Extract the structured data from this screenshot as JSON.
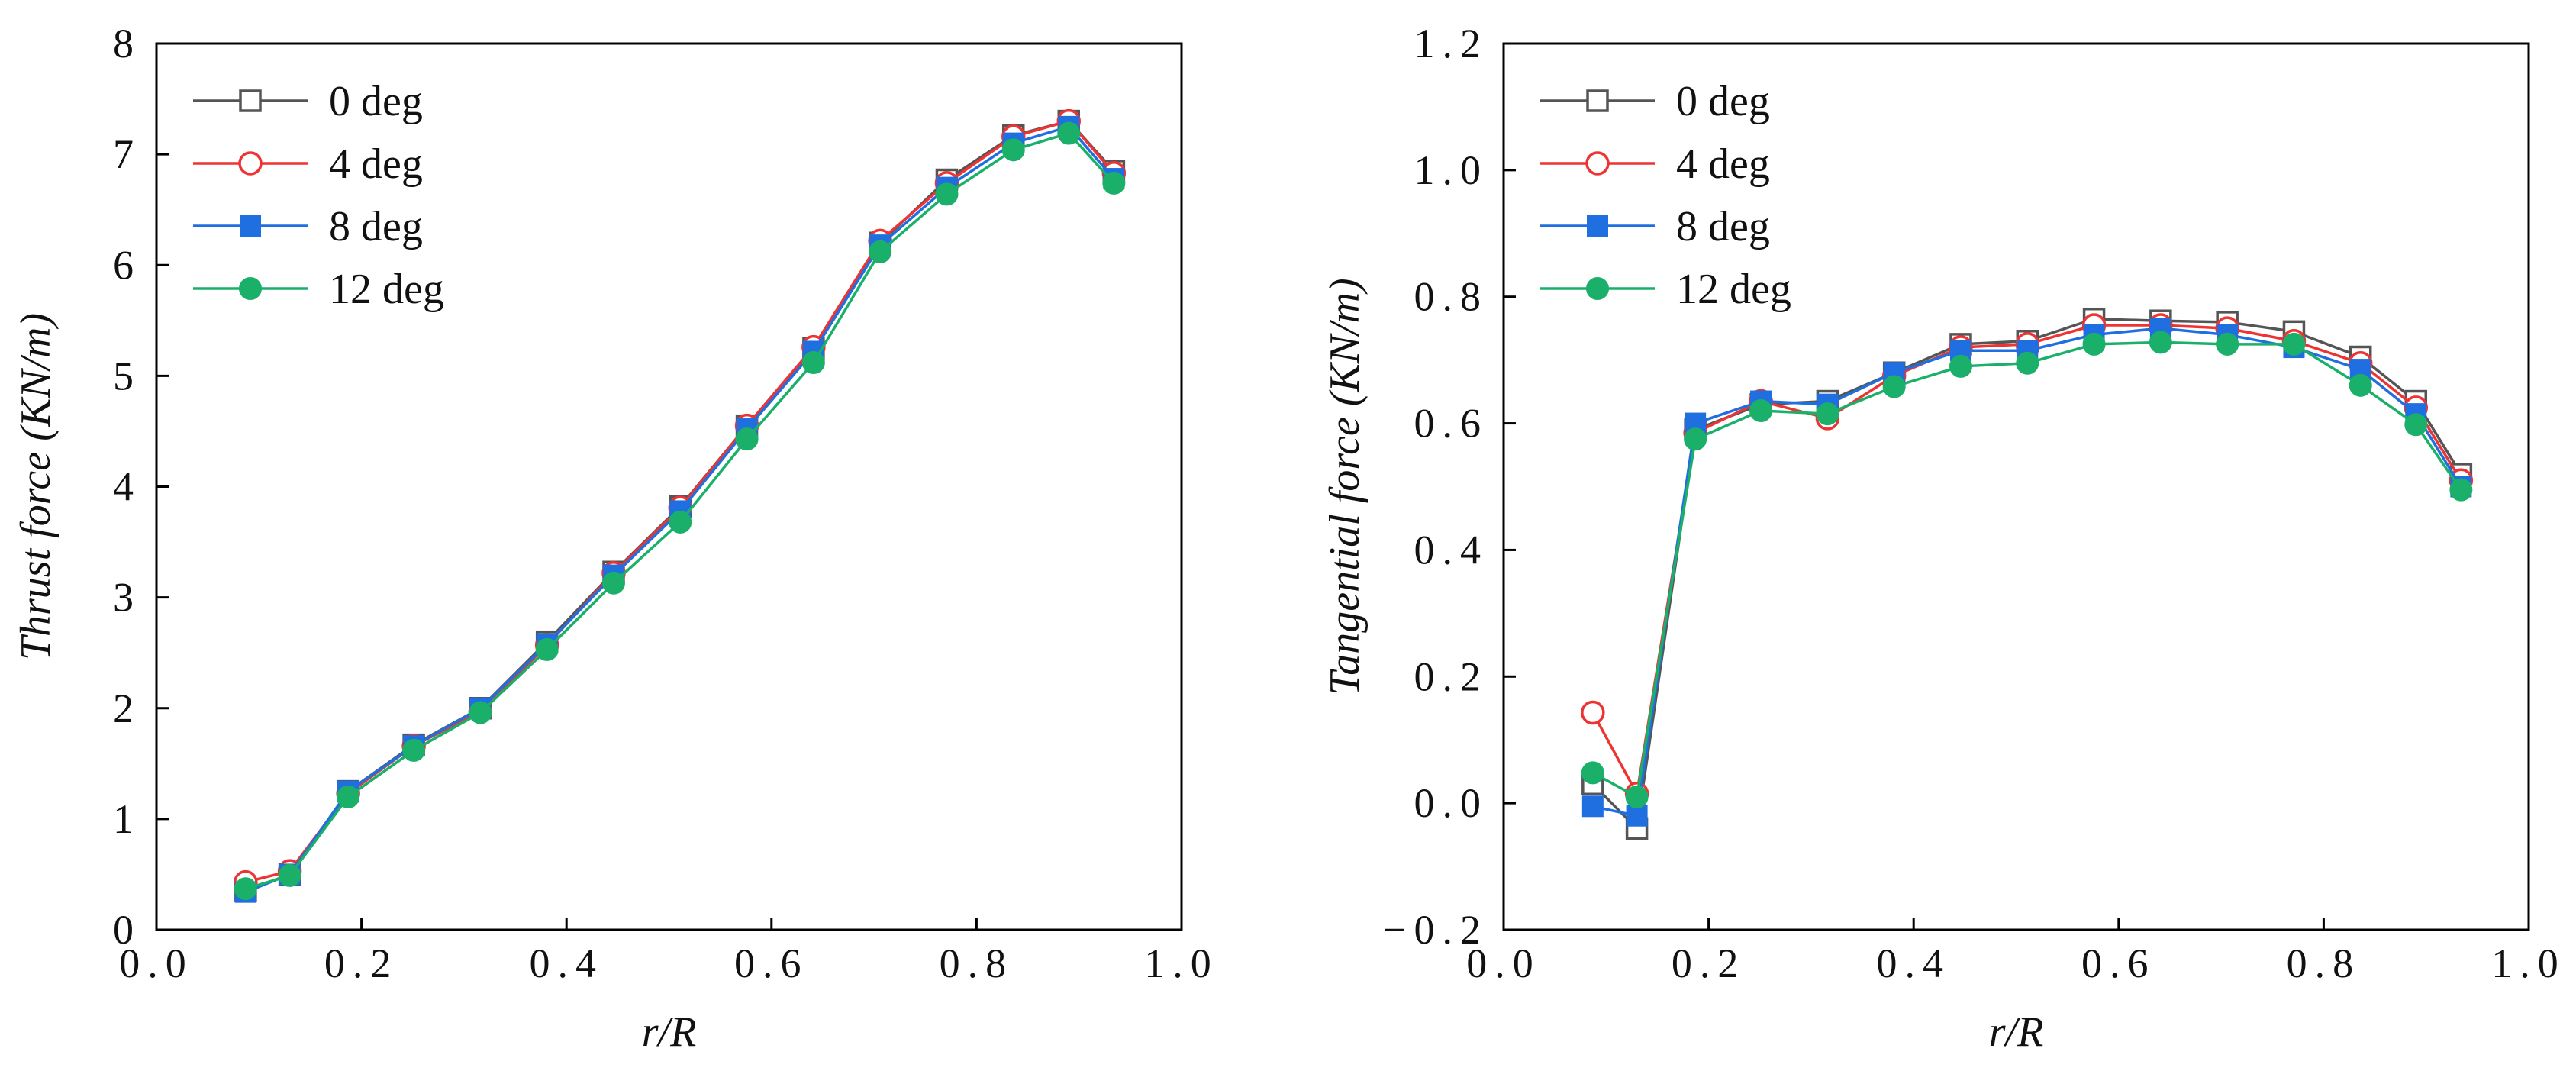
{
  "chart_data": [
    {
      "type": "line",
      "xlabel": "r/R",
      "ylabel": "Thrust force (KN/m)",
      "xlim": [
        0.0,
        1.0
      ],
      "ylim": [
        0,
        8
      ],
      "xticks": [
        0.0,
        0.2,
        0.4,
        0.6,
        0.8,
        1.0
      ],
      "xtick_labels": [
        "0.0",
        "0.2",
        "0.4",
        "0.6",
        "0.8",
        "1.0"
      ],
      "yticks": [
        0,
        1,
        2,
        3,
        4,
        5,
        6,
        7,
        8
      ],
      "ytick_labels": [
        "0",
        "1",
        "2",
        "3",
        "4",
        "5",
        "6",
        "7",
        "8"
      ],
      "legend_position": "top-left",
      "grid": false,
      "x": [
        0.087,
        0.13,
        0.187,
        0.251,
        0.316,
        0.381,
        0.446,
        0.511,
        0.576,
        0.641,
        0.706,
        0.771,
        0.836,
        0.89,
        0.934
      ],
      "series": [
        {
          "name": "0 deg",
          "color": "#555555",
          "marker": "square-open",
          "values": [
            0.35,
            0.5,
            1.25,
            1.67,
            2.0,
            2.6,
            3.23,
            3.82,
            4.55,
            5.25,
            6.2,
            6.77,
            7.17,
            7.3,
            6.85
          ]
        },
        {
          "name": "4 deg",
          "color": "#ee3333",
          "marker": "circle-open",
          "values": [
            0.43,
            0.53,
            1.23,
            1.66,
            1.97,
            2.57,
            3.22,
            3.81,
            4.55,
            5.26,
            6.22,
            6.74,
            7.16,
            7.3,
            6.83
          ]
        },
        {
          "name": "8 deg",
          "color": "#1f6fe0",
          "marker": "square-filled",
          "values": [
            0.34,
            0.5,
            1.25,
            1.66,
            2.0,
            2.58,
            3.2,
            3.78,
            4.52,
            5.22,
            6.18,
            6.7,
            7.1,
            7.25,
            6.78
          ]
        },
        {
          "name": "12 deg",
          "color": "#1ab06a",
          "marker": "circle-filled",
          "values": [
            0.37,
            0.49,
            1.2,
            1.62,
            1.96,
            2.53,
            3.13,
            3.68,
            4.43,
            5.12,
            6.12,
            6.64,
            7.04,
            7.19,
            6.74
          ]
        }
      ]
    },
    {
      "type": "line",
      "xlabel": "r/R",
      "ylabel": "Tangential force (KN/m)",
      "xlim": [
        0.0,
        1.0
      ],
      "ylim": [
        -0.2,
        1.2
      ],
      "xticks": [
        0.0,
        0.2,
        0.4,
        0.6,
        0.8,
        1.0
      ],
      "xtick_labels": [
        "0.0",
        "0.2",
        "0.4",
        "0.6",
        "0.8",
        "1.0"
      ],
      "yticks": [
        -0.2,
        0.0,
        0.2,
        0.4,
        0.6,
        0.8,
        1.0,
        1.2
      ],
      "ytick_labels": [
        "−0.2",
        "0.0",
        "0.2",
        "0.4",
        "0.6",
        "0.8",
        "1.0",
        "1.2"
      ],
      "legend_position": "top-left",
      "grid": false,
      "x": [
        0.087,
        0.13,
        0.187,
        0.251,
        0.316,
        0.381,
        0.446,
        0.511,
        0.576,
        0.641,
        0.706,
        0.771,
        0.836,
        0.89,
        0.934
      ],
      "series": [
        {
          "name": "0 deg",
          "color": "#555555",
          "marker": "square-open",
          "values": [
            0.03,
            -0.04,
            0.59,
            0.63,
            0.635,
            0.68,
            0.725,
            0.73,
            0.765,
            0.762,
            0.76,
            0.745,
            0.705,
            0.635,
            0.52
          ]
        },
        {
          "name": "4 deg",
          "color": "#ee3333",
          "marker": "circle-open",
          "values": [
            0.143,
            0.015,
            0.585,
            0.635,
            0.608,
            0.675,
            0.72,
            0.725,
            0.755,
            0.755,
            0.75,
            0.73,
            0.695,
            0.625,
            0.51
          ]
        },
        {
          "name": "8 deg",
          "color": "#1f6fe0",
          "marker": "square-filled",
          "values": [
            -0.005,
            -0.02,
            0.6,
            0.635,
            0.63,
            0.68,
            0.715,
            0.715,
            0.74,
            0.75,
            0.74,
            0.72,
            0.685,
            0.615,
            0.5
          ]
        },
        {
          "name": "12 deg",
          "color": "#1ab06a",
          "marker": "circle-filled",
          "values": [
            0.048,
            0.01,
            0.575,
            0.62,
            0.615,
            0.658,
            0.69,
            0.695,
            0.725,
            0.728,
            0.725,
            0.725,
            0.66,
            0.598,
            0.495
          ]
        }
      ]
    }
  ]
}
